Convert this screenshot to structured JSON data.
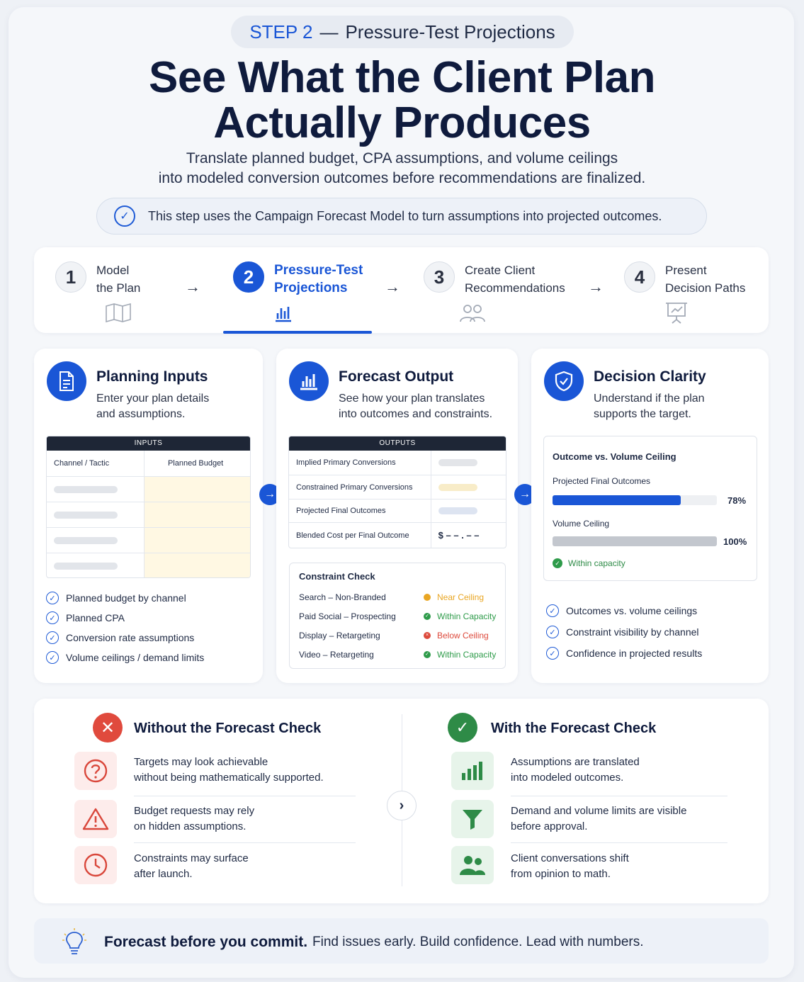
{
  "header": {
    "step_label": "STEP 2",
    "step_dash": "—",
    "step_title": "Pressure-Test Projections",
    "title_line1": "See What the Client Plan",
    "title_line2": "Actually Produces",
    "subtitle_line1": "Translate planned budget, CPA assumptions, and volume ceilings",
    "subtitle_line2": "into modeled conversion outcomes before recommendations are finalized.",
    "notice": "This step uses the Campaign Forecast Model to turn assumptions into projected outcomes."
  },
  "steps": [
    {
      "num": "1",
      "line1": "Model",
      "line2": "the Plan",
      "icon": "map-icon"
    },
    {
      "num": "2",
      "line1": "Pressure-Test",
      "line2": "Projections",
      "icon": "bar-chart-icon"
    },
    {
      "num": "3",
      "line1": "Create Client",
      "line2": "Recommendations",
      "icon": "users-icon"
    },
    {
      "num": "4",
      "line1": "Present",
      "line2": "Decision Paths",
      "icon": "presentation-icon"
    }
  ],
  "arrow": "→",
  "planning": {
    "title": "Planning Inputs",
    "desc_line1": "Enter your plan details",
    "desc_line2": "and assumptions.",
    "table_header": "INPUTS",
    "col1": "Channel / Tactic",
    "col2": "Planned Budget",
    "checks": [
      "Planned budget by channel",
      "Planned CPA",
      "Conversion rate assumptions",
      "Volume ceilings / demand limits"
    ]
  },
  "forecast": {
    "title": "Forecast Output",
    "desc_line1": "See how your plan translates",
    "desc_line2": "into outcomes and constraints.",
    "table_header": "OUTPUTS",
    "rows": [
      "Implied Primary Conversions",
      "Constrained Primary Conversions",
      "Projected Final Outcomes",
      "Blended Cost per Final Outcome"
    ],
    "blended_value": "$ – – . – –",
    "constraint_title": "Constraint Check",
    "constraints": [
      {
        "channel": "Search – Non-Branded",
        "status": "Near Ceiling",
        "color": "#e9a623"
      },
      {
        "channel": "Paid Social – Prospecting",
        "status": "Within Capacity",
        "color": "#2e9b4a"
      },
      {
        "channel": "Display – Retargeting",
        "status": "Below Ceiling",
        "color": "#dd4a3c"
      },
      {
        "channel": "Video – Retargeting",
        "status": "Within Capacity",
        "color": "#2e9b4a"
      }
    ]
  },
  "decision": {
    "title": "Decision Clarity",
    "desc_line1": "Understand if the plan",
    "desc_line2": "supports the target.",
    "card_title": "Outcome vs. Volume Ceiling",
    "projected_label": "Projected Final Outcomes",
    "projected_pct": "78%",
    "projected_value": 0.78,
    "ceiling_label": "Volume Ceiling",
    "ceiling_pct": "100%",
    "ceiling_value": 1.0,
    "status": "Within capacity",
    "checks": [
      "Outcomes vs. volume ceilings",
      "Constraint visibility by channel",
      "Confidence in projected results"
    ]
  },
  "without": {
    "title": "Without the Forecast Check",
    "items": [
      {
        "icon": "question-icon",
        "line1": "Targets may look achievable",
        "line2": "without being mathematically supported."
      },
      {
        "icon": "warning-icon",
        "line1": "Budget requests may rely",
        "line2": "on hidden assumptions."
      },
      {
        "icon": "clock-icon",
        "line1": "Constraints may surface",
        "line2": "after launch."
      }
    ]
  },
  "with": {
    "title": "With the Forecast Check",
    "items": [
      {
        "icon": "bar-chart-icon",
        "line1": "Assumptions are translated",
        "line2": "into modeled outcomes."
      },
      {
        "icon": "funnel-icon",
        "line1": "Demand and volume limits are visible",
        "line2": "before approval."
      },
      {
        "icon": "users-icon",
        "line1": "Client conversations shift",
        "line2": "from opinion to math."
      }
    ]
  },
  "footer": {
    "bold": "Forecast before you commit.",
    "text": "Find issues early. Build confidence. Lead with numbers."
  },
  "colors": {
    "accent": "#1a56d6",
    "green": "#2e8b47",
    "red": "#d9473b"
  }
}
